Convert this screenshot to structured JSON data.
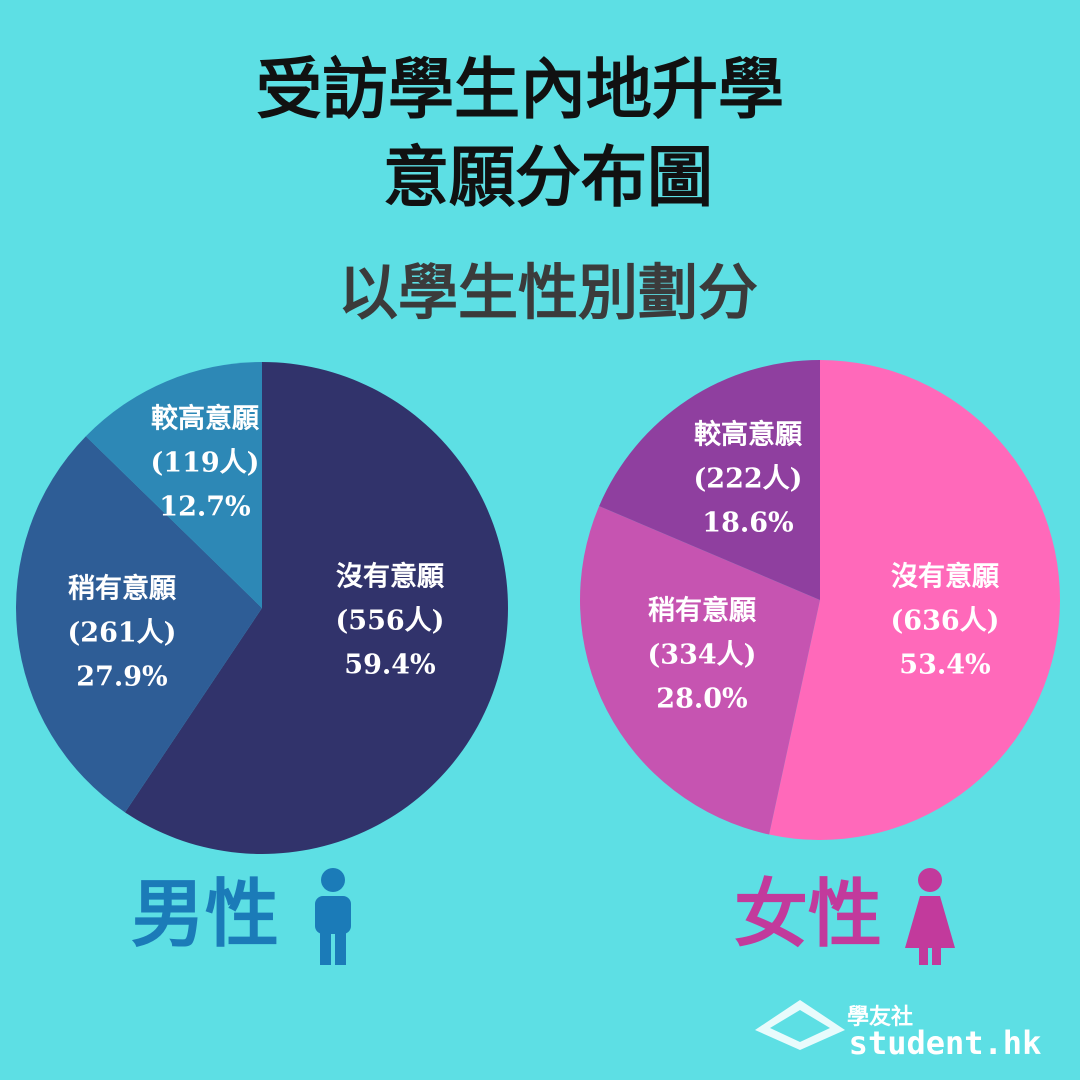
{
  "header": {
    "title_lines": [
      "受訪學生內地升學",
      "意願分布圖"
    ],
    "subtitle": "以學生性別劃分"
  },
  "chart_data": [
    {
      "type": "pie",
      "title": "男性",
      "title_color": "#1b7bb8",
      "categories": [
        "沒有意願",
        "稍有意願",
        "較高意願"
      ],
      "values": [
        59.4,
        27.9,
        12.7
      ],
      "value_labels": [
        "59.4%",
        "27.9%",
        "12.7%"
      ],
      "count_labels": [
        "(556人)",
        "(261人)",
        "(119人)"
      ],
      "colors": [
        "#31336b",
        "#2e5d96",
        "#2d88b6"
      ]
    },
    {
      "type": "pie",
      "title": "女性",
      "title_color": "#c23a9c",
      "categories": [
        "沒有意願",
        "稍有意願",
        "較高意願"
      ],
      "values": [
        53.4,
        28.0,
        18.6
      ],
      "value_labels": [
        "53.4%",
        "28.0%",
        "18.6%"
      ],
      "count_labels": [
        "(636人)",
        "(334人)",
        "(222人)"
      ],
      "colors": [
        "#ff69ba",
        "#c654b1",
        "#8f3f9f"
      ]
    }
  ],
  "footer": {
    "logo_name": "學友社",
    "logo_url": "student.hk"
  }
}
